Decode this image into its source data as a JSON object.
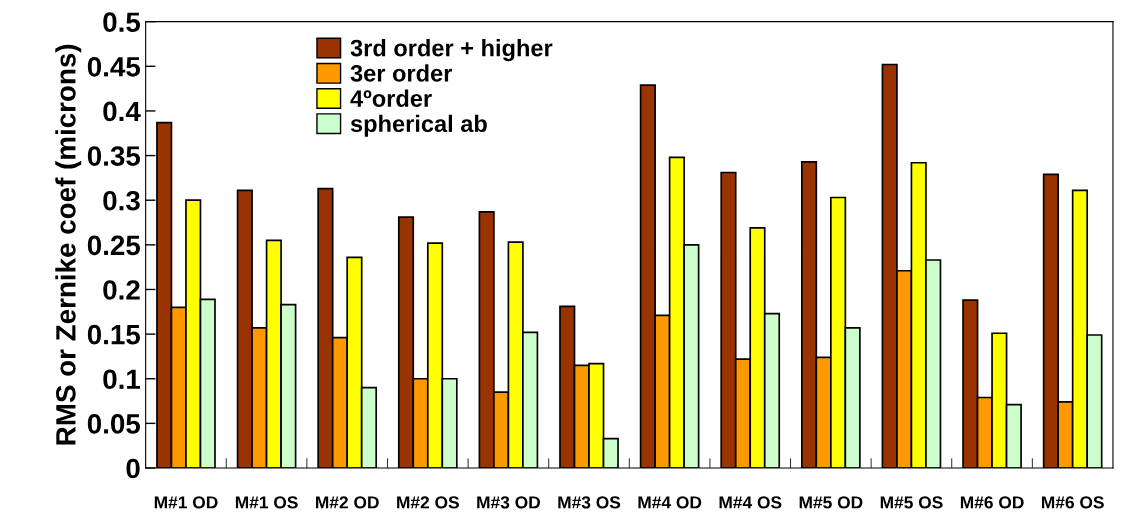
{
  "chart_data": {
    "type": "bar",
    "ylabel": "RMS or Zernike coef (microns)",
    "categories": [
      "M#1 OD",
      "M#1 OS",
      "M#2 OD",
      "M#2 OS",
      "M#3 OD",
      "M#3 OS",
      "M#4 OD",
      "M#4 OS",
      "M#5 OD",
      "M#5 OS",
      "M#6 OD",
      "M#6 OS"
    ],
    "series": [
      {
        "name": "3rd order + higher",
        "color": "#993300",
        "values": [
          0.387,
          0.311,
          0.313,
          0.281,
          0.287,
          0.181,
          0.429,
          0.331,
          0.343,
          0.452,
          0.188,
          0.329
        ]
      },
      {
        "name": "3er order",
        "color": "#ff9900",
        "values": [
          0.18,
          0.157,
          0.146,
          0.1,
          0.085,
          0.115,
          0.171,
          0.122,
          0.124,
          0.221,
          0.079,
          0.074
        ]
      },
      {
        "name": "4ºorder",
        "color": "#ffff00",
        "values": [
          0.3,
          0.255,
          0.236,
          0.252,
          0.253,
          0.117,
          0.348,
          0.269,
          0.303,
          0.342,
          0.151,
          0.311
        ]
      },
      {
        "name": "spherical ab",
        "color": "#ccffcc",
        "values": [
          0.189,
          0.183,
          0.09,
          0.1,
          0.152,
          0.033,
          0.25,
          0.173,
          0.157,
          0.233,
          0.071,
          0.149
        ]
      }
    ],
    "ylim": [
      0,
      0.5
    ],
    "yticks": [
      0,
      0.05,
      0.1,
      0.15,
      0.2,
      0.25,
      0.3,
      0.35,
      0.4,
      0.45,
      0.5
    ],
    "grid": false,
    "legend": "top left"
  }
}
